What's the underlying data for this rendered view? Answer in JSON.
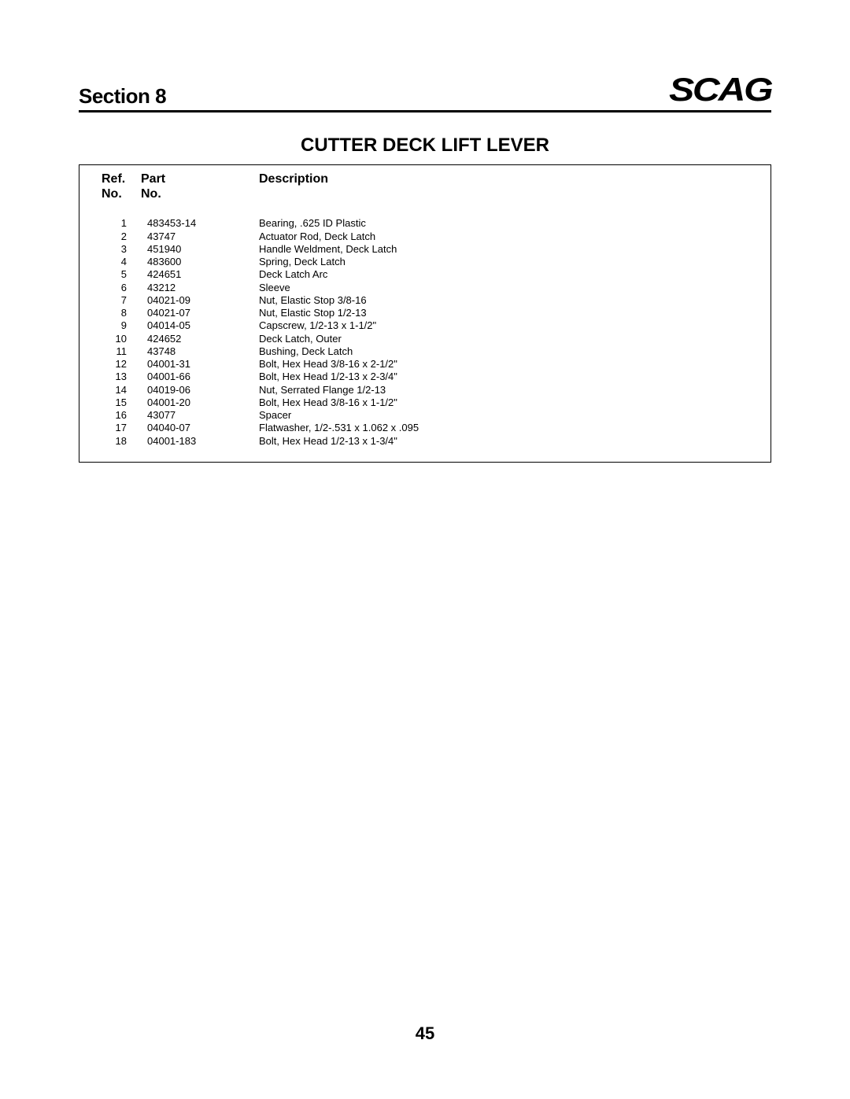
{
  "header": {
    "section_label": "Section 8",
    "brand": "SCAG"
  },
  "title": "CUTTER DECK LIFT LEVER",
  "table": {
    "headers": {
      "ref_line1": "Ref.",
      "ref_line2": "No.",
      "part_line1": "Part",
      "part_line2": "No.",
      "desc_line1": "",
      "desc_line2": "Description"
    },
    "rows": [
      {
        "ref": "1",
        "part": "483453-14",
        "desc": "Bearing, .625 ID Plastic"
      },
      {
        "ref": "2",
        "part": "43747",
        "desc": "Actuator Rod, Deck Latch"
      },
      {
        "ref": "3",
        "part": "451940",
        "desc": "Handle Weldment, Deck Latch"
      },
      {
        "ref": "4",
        "part": "483600",
        "desc": "Spring, Deck Latch"
      },
      {
        "ref": "5",
        "part": "424651",
        "desc": "Deck Latch Arc"
      },
      {
        "ref": "6",
        "part": "43212",
        "desc": "Sleeve"
      },
      {
        "ref": "7",
        "part": "04021-09",
        "desc": "Nut, Elastic Stop 3/8-16"
      },
      {
        "ref": "8",
        "part": "04021-07",
        "desc": "Nut, Elastic Stop 1/2-13"
      },
      {
        "ref": "9",
        "part": "04014-05",
        "desc": "Capscrew, 1/2-13 x 1-1/2\""
      },
      {
        "ref": "10",
        "part": "424652",
        "desc": "Deck Latch, Outer"
      },
      {
        "ref": "11",
        "part": "43748",
        "desc": "Bushing, Deck Latch"
      },
      {
        "ref": "12",
        "part": "04001-31",
        "desc": "Bolt, Hex Head 3/8-16 x 2-1/2\""
      },
      {
        "ref": "13",
        "part": "04001-66",
        "desc": "Bolt, Hex Head 1/2-13 x 2-3/4\""
      },
      {
        "ref": "14",
        "part": "04019-06",
        "desc": "Nut, Serrated Flange 1/2-13"
      },
      {
        "ref": "15",
        "part": "04001-20",
        "desc": "Bolt, Hex Head 3/8-16 x 1-1/2\""
      },
      {
        "ref": "16",
        "part": "43077",
        "desc": "Spacer"
      },
      {
        "ref": "17",
        "part": "04040-07",
        "desc": "Flatwasher, 1/2-.531 x 1.062 x .095"
      },
      {
        "ref": "18",
        "part": "04001-183",
        "desc": "Bolt, Hex Head 1/2-13 x 1-3/4\""
      }
    ]
  },
  "page_number": "45"
}
